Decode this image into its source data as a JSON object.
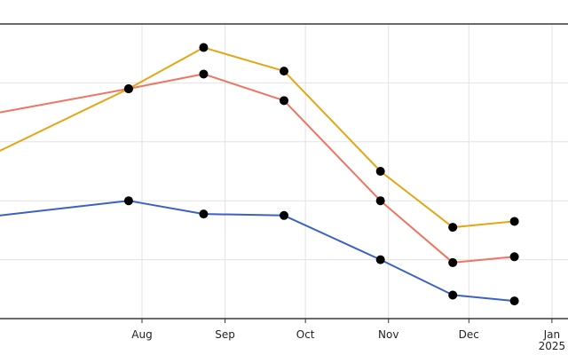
{
  "chart_data": {
    "type": "line",
    "title": "",
    "xlabel": "",
    "ylabel": "",
    "x_axis": {
      "ticks": [
        {
          "date": "2024-08-01",
          "label": "Aug",
          "sublabel": ""
        },
        {
          "date": "2024-09-01",
          "label": "Sep",
          "sublabel": ""
        },
        {
          "date": "2024-10-01",
          "label": "Oct",
          "sublabel": ""
        },
        {
          "date": "2024-11-01",
          "label": "Nov",
          "sublabel": ""
        },
        {
          "date": "2024-12-01",
          "label": "Dec",
          "sublabel": ""
        },
        {
          "date": "2025-01-01",
          "label": "Jan",
          "sublabel": "2025"
        }
      ],
      "range": [
        "2024-06-09",
        "2025-01-07"
      ]
    },
    "y_axis": {
      "range": [
        0,
        100
      ],
      "gridlines": [
        0,
        20,
        40,
        60,
        80,
        100
      ],
      "tick_labels_visible": false
    },
    "grid": true,
    "series": [
      {
        "color": "#E5A616",
        "points": [
          {
            "x": "2024-06-09",
            "y": 57
          },
          {
            "x": "2024-07-27",
            "y": 78
          },
          {
            "x": "2024-08-24",
            "y": 92
          },
          {
            "x": "2024-09-23",
            "y": 84
          },
          {
            "x": "2024-10-29",
            "y": 50
          },
          {
            "x": "2024-11-25",
            "y": 31
          },
          {
            "x": "2024-12-18",
            "y": 33
          }
        ]
      },
      {
        "color": "#F07462",
        "points": [
          {
            "x": "2024-06-09",
            "y": 70
          },
          {
            "x": "2024-07-27",
            "y": 78
          },
          {
            "x": "2024-08-24",
            "y": 83
          },
          {
            "x": "2024-09-23",
            "y": 74
          },
          {
            "x": "2024-10-29",
            "y": 40
          },
          {
            "x": "2024-11-25",
            "y": 19
          },
          {
            "x": "2024-12-18",
            "y": 21
          }
        ]
      },
      {
        "color": "#3A62C3",
        "points": [
          {
            "x": "2024-06-09",
            "y": 35
          },
          {
            "x": "2024-07-27",
            "y": 40
          },
          {
            "x": "2024-08-24",
            "y": 35.5
          },
          {
            "x": "2024-09-23",
            "y": 35
          },
          {
            "x": "2024-10-29",
            "y": 20
          },
          {
            "x": "2024-11-25",
            "y": 8
          },
          {
            "x": "2024-12-18",
            "y": 6
          }
        ]
      }
    ]
  }
}
